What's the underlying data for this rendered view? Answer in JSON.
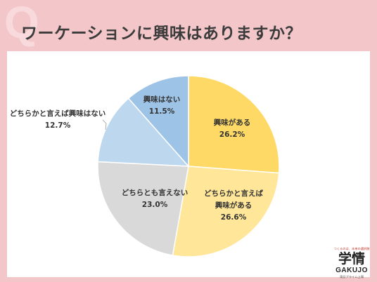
{
  "header": {
    "q_mark": "Q",
    "title": "ワーケーションに興味はありますか？"
  },
  "chart_data": {
    "type": "pie",
    "start_angle_deg": 0,
    "direction": "clockwise",
    "slices": [
      {
        "label": "興味がある",
        "pct_label": "26.2%",
        "value": 26.2,
        "color": "#ffd966"
      },
      {
        "label": "どちらかと言えば興味がある",
        "label_lines": [
          "どちらかと言えば",
          "興味がある"
        ],
        "pct_label": "26.6%",
        "value": 26.6,
        "color": "#ffe699"
      },
      {
        "label": "どちらとも言えない",
        "pct_label": "23.0%",
        "value": 23.0,
        "color": "#d9d9d9"
      },
      {
        "label": "どちらかと言えば興味はない",
        "pct_label": "12.7%",
        "value": 12.7,
        "color": "#bdd7ee"
      },
      {
        "label": "興味はない",
        "pct_label": "11.5%",
        "value": 11.5,
        "color": "#9dc3e6"
      }
    ]
  },
  "logo": {
    "tagline": "つくるのは、未来の選択肢",
    "kanji": "学情",
    "latin": "GAKUJO",
    "sub": "東証プライム上場"
  }
}
